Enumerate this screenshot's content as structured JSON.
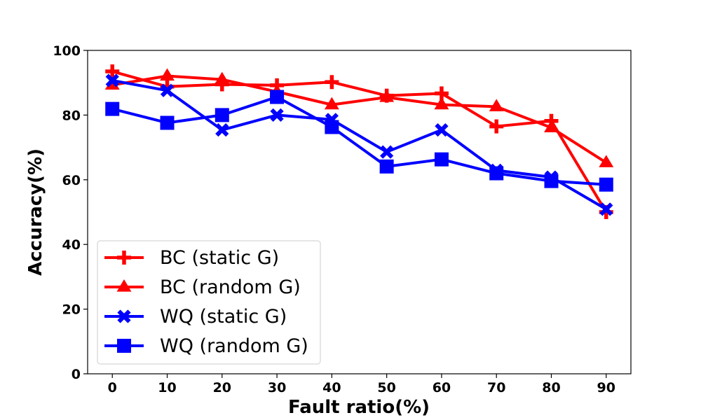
{
  "chart_data": {
    "type": "line",
    "title": "",
    "xlabel": "Fault ratio(%)",
    "ylabel": "Accuracy(%)",
    "x": [
      0,
      10,
      20,
      30,
      40,
      50,
      60,
      70,
      80,
      90
    ],
    "xlim": [
      -4.5,
      94.5
    ],
    "ylim": [
      0,
      100
    ],
    "x_ticks": [
      0,
      10,
      20,
      30,
      40,
      50,
      60,
      70,
      80,
      90
    ],
    "y_ticks": [
      0,
      20,
      40,
      60,
      80,
      100
    ],
    "grid": false,
    "legend_position": "lower-left",
    "series": [
      {
        "name": "BC (static G)",
        "color": "#ff0000",
        "marker": "plus",
        "values": [
          93.5,
          88.8,
          89.5,
          89.2,
          90.2,
          86.0,
          86.7,
          76.5,
          78.2,
          50.0
        ]
      },
      {
        "name": "BC (random G)",
        "color": "#ff0000",
        "marker": "triangle",
        "values": [
          89.3,
          92.1,
          91.0,
          87.2,
          83.2,
          85.5,
          83.2,
          82.6,
          76.1,
          65.3
        ]
      },
      {
        "name": "WQ (static G)",
        "color": "#0000ff",
        "marker": "x",
        "values": [
          90.7,
          87.6,
          75.4,
          80.0,
          78.6,
          68.6,
          75.4,
          62.9,
          60.8,
          50.9
        ]
      },
      {
        "name": "WQ (random G)",
        "color": "#0000ff",
        "marker": "square",
        "values": [
          81.9,
          77.6,
          80.0,
          85.6,
          76.3,
          64.1,
          66.3,
          62.0,
          59.6,
          58.5
        ]
      }
    ]
  }
}
